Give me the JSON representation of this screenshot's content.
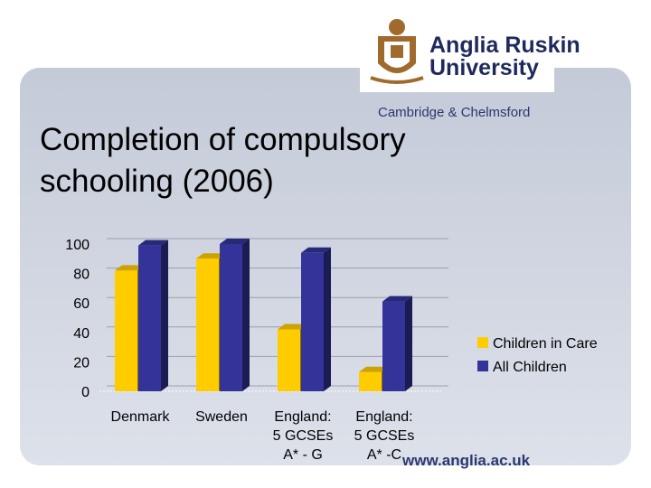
{
  "branding": {
    "name_line1": "Anglia Ruskin",
    "name_line2": "University",
    "campus": "Cambridge & Chelmsford",
    "url": "www.anglia.ac.uk"
  },
  "chart_data": {
    "type": "bar",
    "title": "Completion of compulsory schooling (2006)",
    "categories": [
      [
        "Denmark"
      ],
      [
        "Sweden"
      ],
      [
        "England:",
        "5 GCSEs",
        "A* - G"
      ],
      [
        "England:",
        "5 GCSEs",
        "A* -C"
      ]
    ],
    "series": [
      {
        "name": "Children in Care",
        "color": "#ffcc00",
        "values": [
          82,
          90,
          42,
          13
        ]
      },
      {
        "name": "All Children",
        "color": "#333399",
        "values": [
          99,
          100,
          94,
          61
        ]
      }
    ],
    "ylim": [
      0,
      100
    ],
    "yticks": [
      0,
      20,
      40,
      60,
      80,
      100
    ],
    "grid": true,
    "legend": "right"
  }
}
